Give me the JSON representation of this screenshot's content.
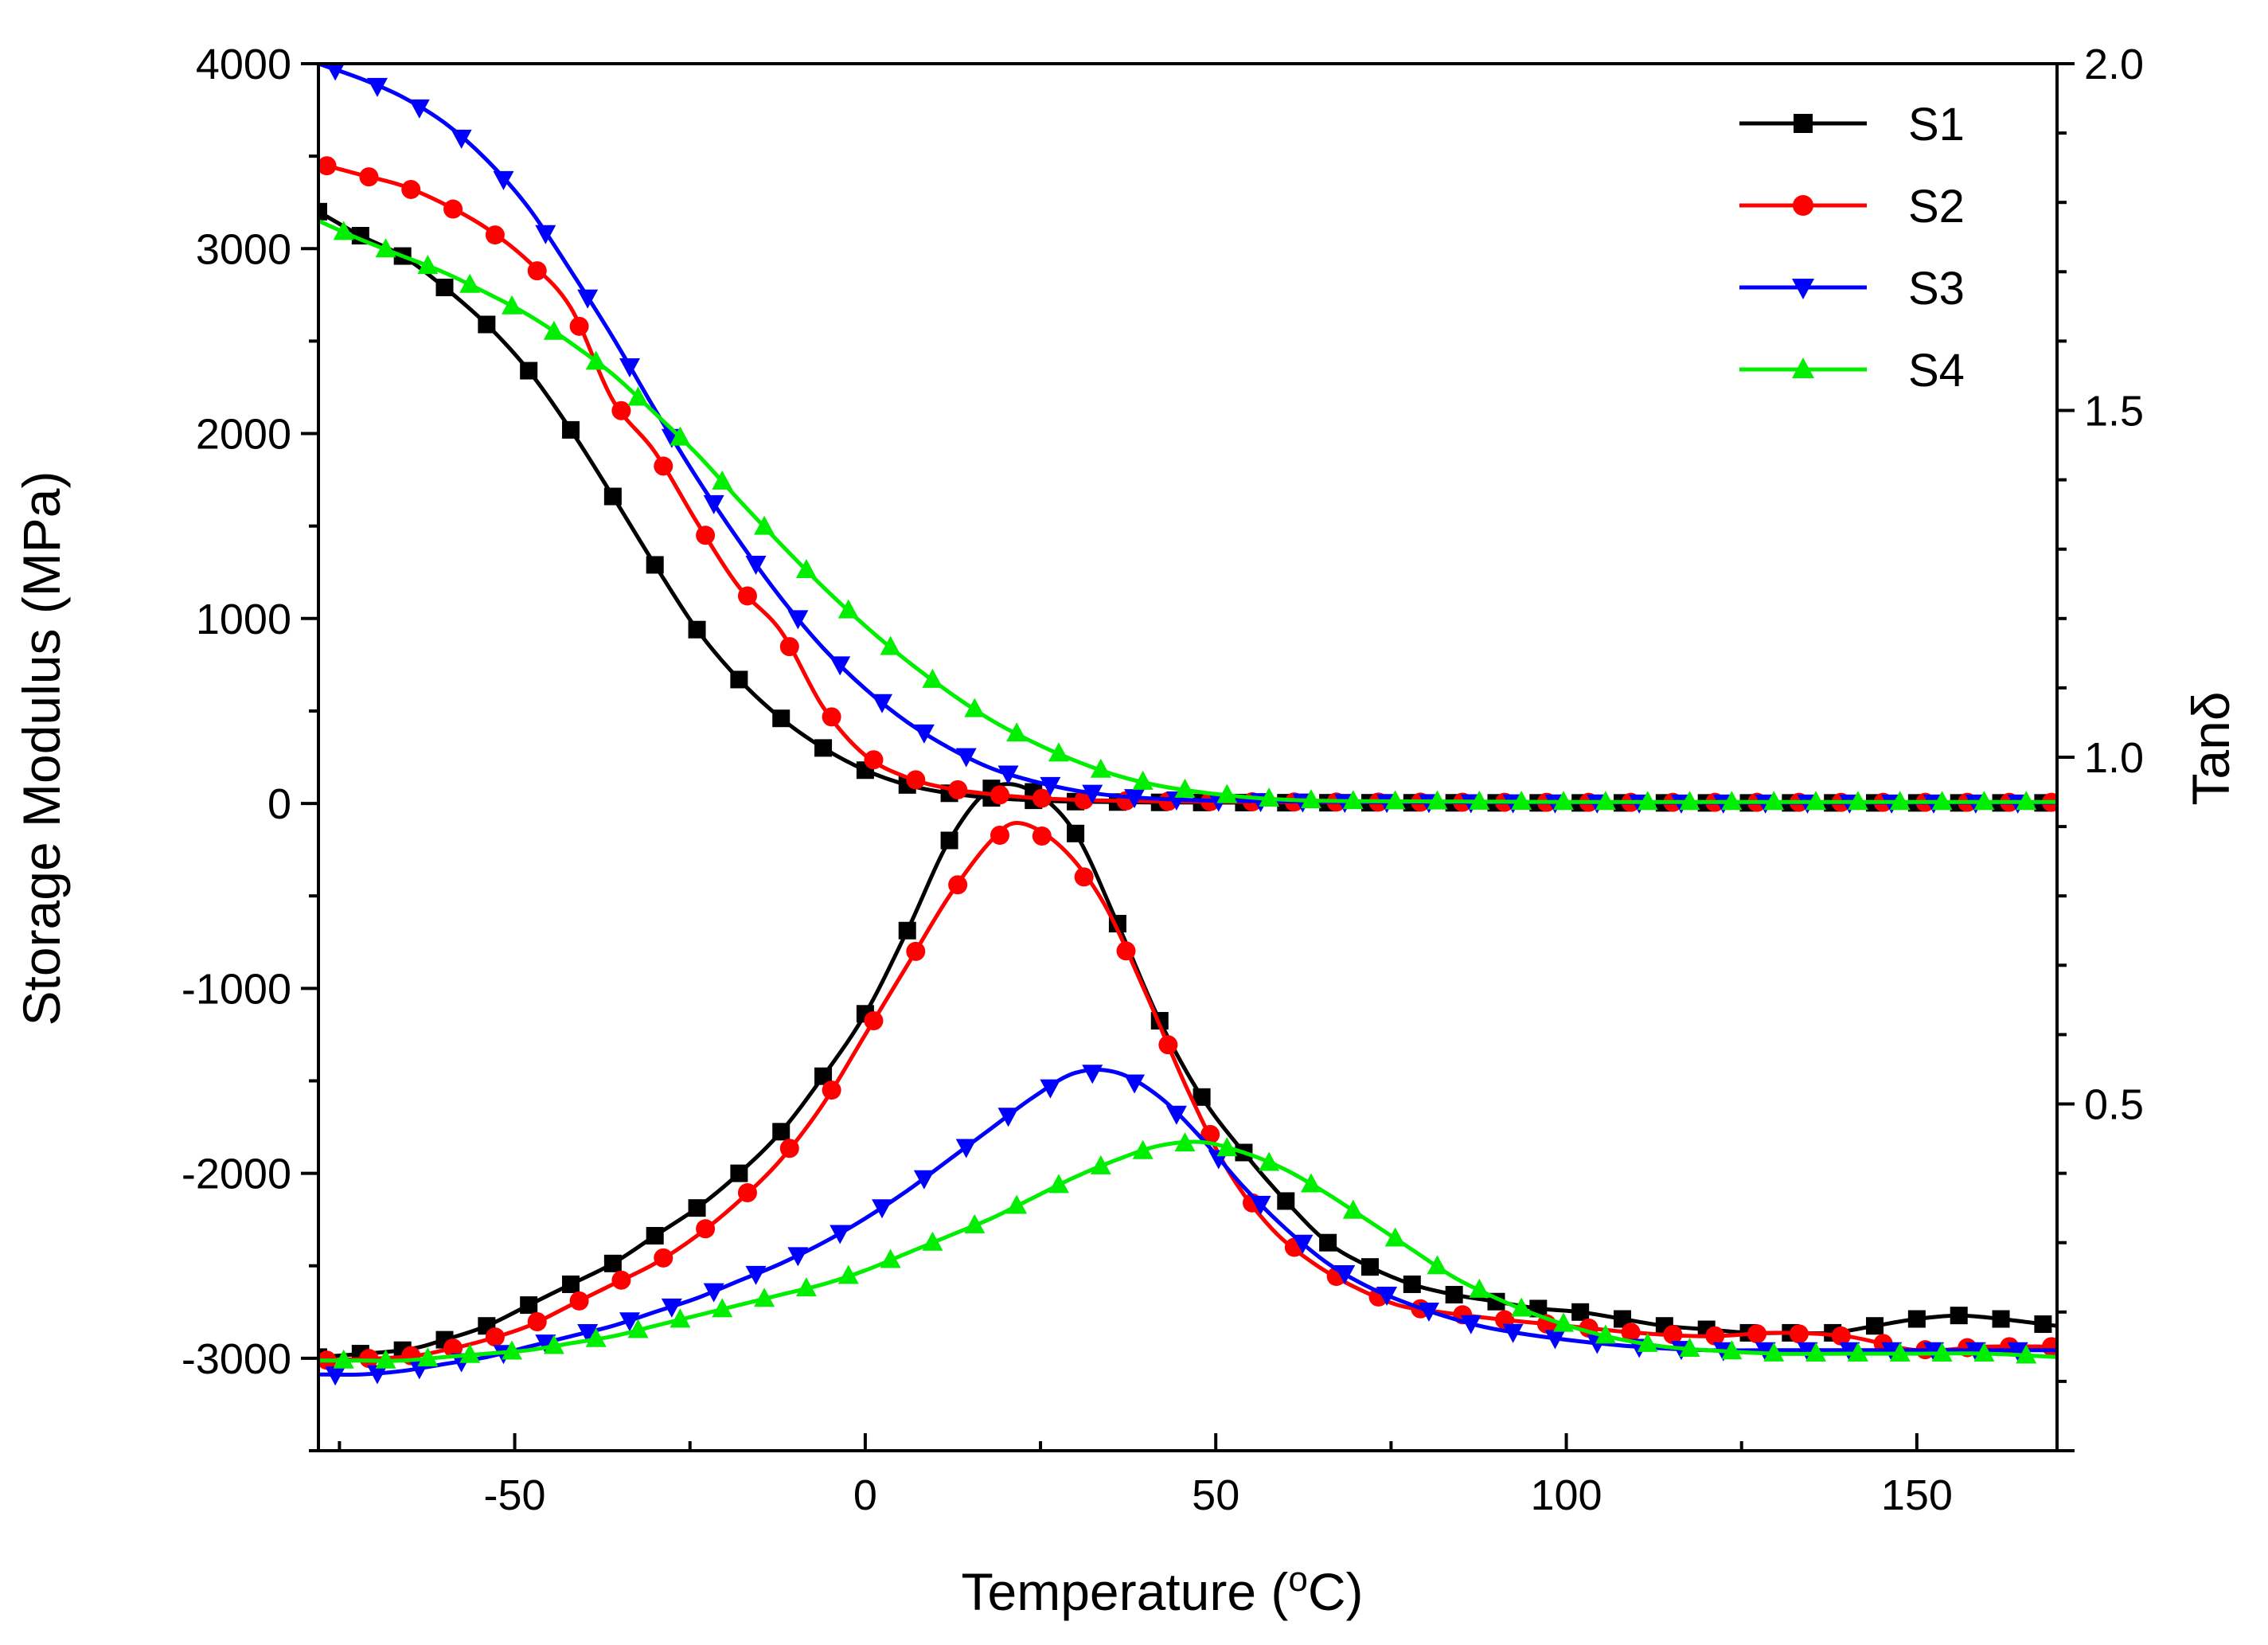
{
  "chart_data": {
    "type": "line",
    "title": "",
    "xlabel": "Temperature (°C)",
    "xlabel_parts": {
      "pre": "Temperature (",
      "sup": "o",
      "post": "C)"
    },
    "ylabel_left": "Storage Modulus (MPa)",
    "ylabel_right": "Tanδ",
    "xlim": [
      -78,
      170
    ],
    "ylim_left": [
      -3500,
      4000
    ],
    "ylim_right": [
      0.0,
      2.0
    ],
    "x_ticks": [
      -50,
      0,
      50,
      100,
      150
    ],
    "y_left_ticks": [
      -3000,
      -2000,
      -1000,
      0,
      1000,
      2000,
      3000,
      4000
    ],
    "y_right_ticks": [
      "0.5",
      "1.0",
      "1.5",
      "2.0"
    ],
    "legend_position": "top-right",
    "series": [
      {
        "name": "S1",
        "color": "#000000",
        "marker": "square",
        "storage_modulus": [
          [
            -78,
            3200
          ],
          [
            -72,
            3070
          ],
          [
            -66,
            2960
          ],
          [
            -60,
            2790
          ],
          [
            -54,
            2590
          ],
          [
            -48,
            2340
          ],
          [
            -42,
            2020
          ],
          [
            -36,
            1660
          ],
          [
            -30,
            1290
          ],
          [
            -24,
            940
          ],
          [
            -18,
            670
          ],
          [
            -12,
            460
          ],
          [
            -6,
            300
          ],
          [
            0,
            180
          ],
          [
            6,
            100
          ],
          [
            12,
            55
          ],
          [
            18,
            30
          ],
          [
            24,
            17
          ],
          [
            30,
            10
          ],
          [
            40,
            6
          ],
          [
            60,
            4
          ],
          [
            100,
            3
          ],
          [
            140,
            3
          ],
          [
            170,
            3
          ]
        ],
        "tan_delta": [
          [
            -78,
            0.135
          ],
          [
            -66,
            0.145
          ],
          [
            -60,
            0.16
          ],
          [
            -54,
            0.18
          ],
          [
            -48,
            0.21
          ],
          [
            -42,
            0.24
          ],
          [
            -36,
            0.27
          ],
          [
            -30,
            0.31
          ],
          [
            -24,
            0.35
          ],
          [
            -18,
            0.4
          ],
          [
            -12,
            0.46
          ],
          [
            -6,
            0.54
          ],
          [
            0,
            0.63
          ],
          [
            6,
            0.75
          ],
          [
            12,
            0.88
          ],
          [
            18,
            0.955
          ],
          [
            24,
            0.95
          ],
          [
            30,
            0.89
          ],
          [
            36,
            0.76
          ],
          [
            42,
            0.62
          ],
          [
            48,
            0.51
          ],
          [
            54,
            0.43
          ],
          [
            60,
            0.36
          ],
          [
            66,
            0.3
          ],
          [
            72,
            0.265
          ],
          [
            78,
            0.24
          ],
          [
            84,
            0.225
          ],
          [
            90,
            0.215
          ],
          [
            96,
            0.205
          ],
          [
            102,
            0.2
          ],
          [
            108,
            0.19
          ],
          [
            114,
            0.18
          ],
          [
            120,
            0.175
          ],
          [
            126,
            0.17
          ],
          [
            132,
            0.17
          ],
          [
            138,
            0.17
          ],
          [
            144,
            0.18
          ],
          [
            150,
            0.19
          ],
          [
            156,
            0.195
          ],
          [
            162,
            0.19
          ],
          [
            170,
            0.18
          ]
        ]
      },
      {
        "name": "S2",
        "color": "#ff0000",
        "marker": "circle",
        "storage_modulus": [
          [
            -78,
            3460
          ],
          [
            -72,
            3400
          ],
          [
            -66,
            3340
          ],
          [
            -60,
            3240
          ],
          [
            -54,
            3110
          ],
          [
            -48,
            2930
          ],
          [
            -42,
            2680
          ],
          [
            -36,
            2180
          ],
          [
            -30,
            1900
          ],
          [
            -24,
            1520
          ],
          [
            -18,
            1170
          ],
          [
            -12,
            930
          ],
          [
            -6,
            520
          ],
          [
            0,
            260
          ],
          [
            6,
            140
          ],
          [
            12,
            80
          ],
          [
            18,
            50
          ],
          [
            24,
            30
          ],
          [
            30,
            20
          ],
          [
            40,
            12
          ],
          [
            60,
            8
          ],
          [
            100,
            6
          ],
          [
            140,
            6
          ],
          [
            170,
            6
          ]
        ],
        "tan_delta": [
          [
            -78,
            0.13
          ],
          [
            -66,
            0.135
          ],
          [
            -60,
            0.145
          ],
          [
            -54,
            0.16
          ],
          [
            -48,
            0.18
          ],
          [
            -42,
            0.21
          ],
          [
            -36,
            0.24
          ],
          [
            -30,
            0.27
          ],
          [
            -24,
            0.31
          ],
          [
            -18,
            0.36
          ],
          [
            -12,
            0.42
          ],
          [
            -6,
            0.5
          ],
          [
            0,
            0.6
          ],
          [
            6,
            0.7
          ],
          [
            12,
            0.8
          ],
          [
            18,
            0.88
          ],
          [
            22,
            0.905
          ],
          [
            28,
            0.87
          ],
          [
            34,
            0.79
          ],
          [
            40,
            0.66
          ],
          [
            46,
            0.52
          ],
          [
            52,
            0.4
          ],
          [
            58,
            0.32
          ],
          [
            64,
            0.27
          ],
          [
            70,
            0.235
          ],
          [
            76,
            0.21
          ],
          [
            82,
            0.2
          ],
          [
            90,
            0.19
          ],
          [
            100,
            0.18
          ],
          [
            110,
            0.17
          ],
          [
            120,
            0.165
          ],
          [
            130,
            0.17
          ],
          [
            140,
            0.165
          ],
          [
            150,
            0.145
          ],
          [
            160,
            0.15
          ],
          [
            170,
            0.15
          ]
        ]
      },
      {
        "name": "S3",
        "color": "#0000ff",
        "marker": "triangle-down",
        "storage_modulus": [
          [
            -78,
            4000
          ],
          [
            -72,
            3920
          ],
          [
            -66,
            3820
          ],
          [
            -60,
            3680
          ],
          [
            -54,
            3480
          ],
          [
            -48,
            3220
          ],
          [
            -42,
            2880
          ],
          [
            -36,
            2520
          ],
          [
            -30,
            2130
          ],
          [
            -24,
            1760
          ],
          [
            -18,
            1420
          ],
          [
            -12,
            1110
          ],
          [
            -6,
            840
          ],
          [
            0,
            620
          ],
          [
            6,
            440
          ],
          [
            12,
            300
          ],
          [
            18,
            190
          ],
          [
            24,
            120
          ],
          [
            30,
            70
          ],
          [
            36,
            40
          ],
          [
            42,
            25
          ],
          [
            50,
            15
          ],
          [
            70,
            8
          ],
          [
            110,
            5
          ],
          [
            170,
            5
          ]
        ],
        "tan_delta": [
          [
            -78,
            0.11
          ],
          [
            -72,
            0.11
          ],
          [
            -66,
            0.115
          ],
          [
            -60,
            0.125
          ],
          [
            -54,
            0.135
          ],
          [
            -48,
            0.15
          ],
          [
            -42,
            0.165
          ],
          [
            -36,
            0.18
          ],
          [
            -30,
            0.2
          ],
          [
            -24,
            0.22
          ],
          [
            -18,
            0.245
          ],
          [
            -12,
            0.27
          ],
          [
            -6,
            0.3
          ],
          [
            0,
            0.335
          ],
          [
            6,
            0.375
          ],
          [
            12,
            0.42
          ],
          [
            18,
            0.465
          ],
          [
            24,
            0.51
          ],
          [
            30,
            0.545
          ],
          [
            36,
            0.545
          ],
          [
            42,
            0.51
          ],
          [
            48,
            0.45
          ],
          [
            54,
            0.38
          ],
          [
            60,
            0.32
          ],
          [
            66,
            0.27
          ],
          [
            72,
            0.235
          ],
          [
            78,
            0.21
          ],
          [
            84,
            0.19
          ],
          [
            90,
            0.175
          ],
          [
            100,
            0.16
          ],
          [
            110,
            0.15
          ],
          [
            120,
            0.145
          ],
          [
            130,
            0.145
          ],
          [
            140,
            0.145
          ],
          [
            150,
            0.145
          ],
          [
            160,
            0.145
          ],
          [
            170,
            0.145
          ]
        ]
      },
      {
        "name": "S4",
        "color": "#00ee00",
        "marker": "triangle-up",
        "storage_modulus": [
          [
            -78,
            3150
          ],
          [
            -72,
            3050
          ],
          [
            -66,
            2960
          ],
          [
            -60,
            2870
          ],
          [
            -54,
            2760
          ],
          [
            -48,
            2640
          ],
          [
            -42,
            2490
          ],
          [
            -36,
            2320
          ],
          [
            -30,
            2110
          ],
          [
            -24,
            1890
          ],
          [
            -18,
            1640
          ],
          [
            -12,
            1400
          ],
          [
            -6,
            1170
          ],
          [
            0,
            960
          ],
          [
            6,
            770
          ],
          [
            12,
            600
          ],
          [
            18,
            450
          ],
          [
            24,
            330
          ],
          [
            30,
            230
          ],
          [
            36,
            150
          ],
          [
            42,
            95
          ],
          [
            48,
            60
          ],
          [
            54,
            35
          ],
          [
            60,
            20
          ],
          [
            70,
            12
          ],
          [
            100,
            8
          ],
          [
            170,
            8
          ]
        ],
        "tan_delta": [
          [
            -78,
            0.13
          ],
          [
            -72,
            0.13
          ],
          [
            -66,
            0.13
          ],
          [
            -60,
            0.135
          ],
          [
            -54,
            0.14
          ],
          [
            -48,
            0.145
          ],
          [
            -42,
            0.155
          ],
          [
            -36,
            0.165
          ],
          [
            -30,
            0.18
          ],
          [
            -24,
            0.195
          ],
          [
            -18,
            0.21
          ],
          [
            -12,
            0.225
          ],
          [
            -6,
            0.24
          ],
          [
            0,
            0.26
          ],
          [
            6,
            0.285
          ],
          [
            12,
            0.31
          ],
          [
            18,
            0.335
          ],
          [
            24,
            0.365
          ],
          [
            30,
            0.395
          ],
          [
            36,
            0.42
          ],
          [
            42,
            0.44
          ],
          [
            48,
            0.445
          ],
          [
            54,
            0.43
          ],
          [
            60,
            0.405
          ],
          [
            66,
            0.37
          ],
          [
            72,
            0.33
          ],
          [
            78,
            0.29
          ],
          [
            84,
            0.25
          ],
          [
            90,
            0.22
          ],
          [
            96,
            0.195
          ],
          [
            102,
            0.175
          ],
          [
            108,
            0.16
          ],
          [
            114,
            0.15
          ],
          [
            120,
            0.145
          ],
          [
            130,
            0.14
          ],
          [
            140,
            0.14
          ],
          [
            150,
            0.14
          ],
          [
            160,
            0.14
          ],
          [
            170,
            0.135
          ]
        ]
      }
    ]
  }
}
